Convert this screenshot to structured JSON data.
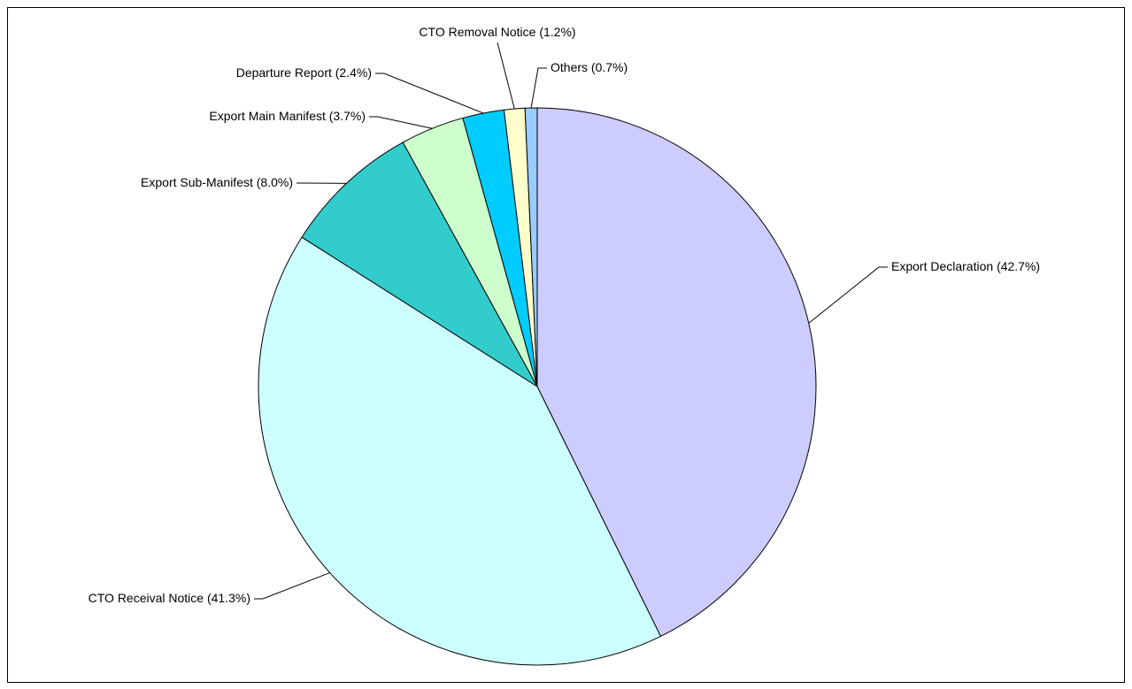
{
  "chart_data": {
    "type": "pie",
    "categories": [
      "Export Declaration",
      "CTO Receival Notice",
      "Export Sub-Manifest",
      "Export Main Manifest",
      "Departure Report",
      "CTO Removal Notice",
      "Others"
    ],
    "values": [
      42.7,
      41.3,
      8.0,
      3.7,
      2.4,
      1.2,
      0.7
    ],
    "value_labels": [
      "(42.7%)",
      "(41.3%)",
      "(8.0%)",
      "(3.7%)",
      "(2.4%)",
      "(1.2%)",
      "(0.7%)"
    ],
    "colors": [
      "#ccccff",
      "#ccffff",
      "#33cccc",
      "#ccffcc",
      "#00ccff",
      "#ffffcc",
      "#99ccff"
    ]
  }
}
